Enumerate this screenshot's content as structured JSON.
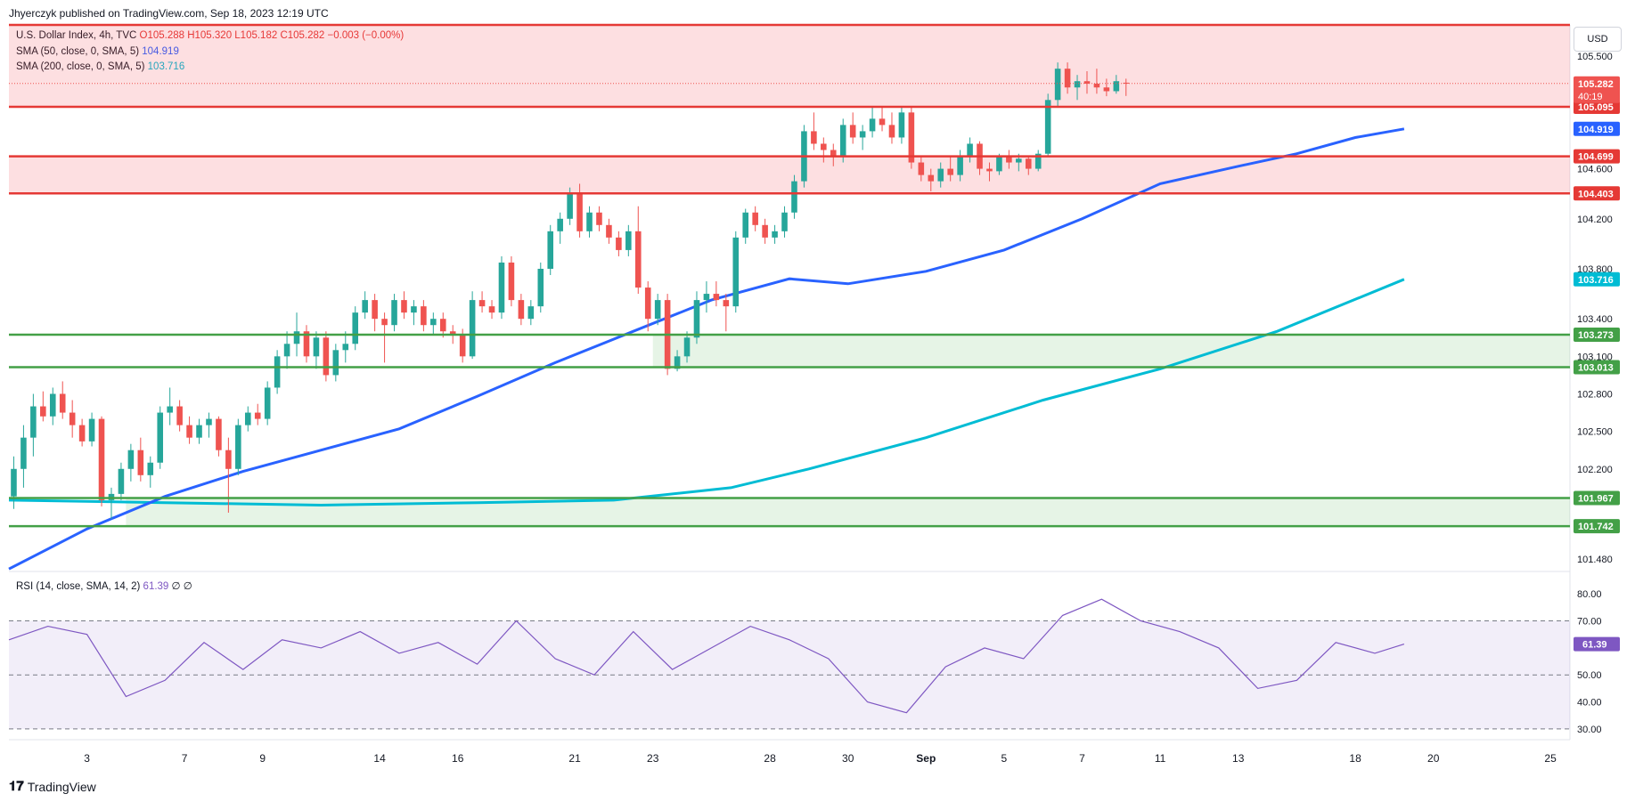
{
  "header": {
    "publisher": "Jhyerczyk published on TradingView.com, Sep 18, 2023 12:19 UTC"
  },
  "legend": {
    "symbol": "U.S. Dollar Index, 4h, TVC",
    "ohlc": "O105.288  H105.320  L105.182  C105.282  −0.003 (−0.00%)",
    "sma50_label": "SMA (50, close, 0, SMA, 5)",
    "sma50_value": "104.919",
    "sma200_label": "SMA (200, close, 0, SMA, 5)",
    "sma200_value": "103.716",
    "rsi_label": "RSI (14, close, SMA, 14, 2)",
    "rsi_value": "61.39",
    "rsi_extra": "∅  ∅"
  },
  "toolbar": {
    "currency": "USD"
  },
  "footer": {
    "brand": "TradingView",
    "brand_icon": "tradingview-logo-icon"
  },
  "colors": {
    "up": "#26a69a",
    "down": "#ef5350",
    "sma50": "#2962ff",
    "sma200": "#00bcd4",
    "resistance": "#e53935",
    "support": "#43a047",
    "rsi": "#7e57c2"
  },
  "chart_data": {
    "type": "candlestick",
    "symbol": "U.S. Dollar Index",
    "timeframe": "4h",
    "y_axis_ticks": [
      "105.500",
      "104.600",
      "104.200",
      "103.800",
      "103.400",
      "103.100",
      "102.800",
      "102.500",
      "102.200",
      "101.480"
    ],
    "y_axis_tick_values": [
      105.5,
      104.6,
      104.2,
      103.8,
      103.4,
      103.1,
      102.8,
      102.5,
      102.2,
      101.48
    ],
    "ylim": [
      101.38,
      105.75
    ],
    "x_axis_ticks": [
      "3",
      "7",
      "9",
      "14",
      "16",
      "21",
      "23",
      "28",
      "30",
      "Sep",
      "5",
      "7",
      "11",
      "13",
      "18",
      "20",
      "25"
    ],
    "x_axis_tick_index": [
      8,
      18,
      26,
      38,
      46,
      58,
      66,
      78,
      86,
      94,
      102,
      110,
      118,
      126,
      138,
      146,
      158
    ],
    "x_index_range": [
      0,
      160
    ],
    "candles_approx": [
      [
        101.98,
        102.3,
        101.88,
        102.2
      ],
      [
        102.2,
        102.55,
        102.05,
        102.45
      ],
      [
        102.45,
        102.8,
        102.3,
        102.7
      ],
      [
        102.7,
        102.82,
        102.58,
        102.62
      ],
      [
        102.62,
        102.85,
        102.55,
        102.8
      ],
      [
        102.8,
        102.9,
        102.6,
        102.65
      ],
      [
        102.65,
        102.75,
        102.45,
        102.55
      ],
      [
        102.55,
        102.6,
        102.38,
        102.42
      ],
      [
        102.42,
        102.65,
        102.38,
        102.6
      ],
      [
        102.6,
        102.62,
        101.9,
        101.95
      ],
      [
        101.95,
        102.05,
        101.8,
        102.0
      ],
      [
        102.0,
        102.25,
        101.95,
        102.2
      ],
      [
        102.2,
        102.4,
        102.1,
        102.35
      ],
      [
        102.35,
        102.45,
        102.1,
        102.15
      ],
      [
        102.15,
        102.3,
        102.05,
        102.25
      ],
      [
        102.25,
        102.7,
        102.2,
        102.65
      ],
      [
        102.65,
        102.85,
        102.55,
        102.7
      ],
      [
        102.7,
        102.75,
        102.5,
        102.55
      ],
      [
        102.55,
        102.62,
        102.4,
        102.45
      ],
      [
        102.45,
        102.6,
        102.4,
        102.55
      ],
      [
        102.55,
        102.65,
        102.45,
        102.6
      ],
      [
        102.6,
        102.62,
        102.3,
        102.35
      ],
      [
        102.35,
        102.45,
        101.85,
        102.2
      ],
      [
        102.2,
        102.6,
        102.15,
        102.55
      ],
      [
        102.55,
        102.7,
        102.5,
        102.65
      ],
      [
        102.65,
        102.72,
        102.55,
        102.6
      ],
      [
        102.6,
        102.9,
        102.55,
        102.85
      ],
      [
        102.85,
        103.15,
        102.8,
        103.1
      ],
      [
        103.1,
        103.3,
        103.0,
        103.2
      ],
      [
        103.2,
        103.45,
        103.1,
        103.3
      ],
      [
        103.3,
        103.35,
        103.05,
        103.1
      ],
      [
        103.1,
        103.3,
        103.0,
        103.25
      ],
      [
        103.25,
        103.3,
        102.9,
        102.95
      ],
      [
        102.95,
        103.2,
        102.9,
        103.15
      ],
      [
        103.15,
        103.3,
        103.05,
        103.2
      ],
      [
        103.2,
        103.5,
        103.15,
        103.45
      ],
      [
        103.45,
        103.62,
        103.4,
        103.55
      ],
      [
        103.55,
        103.6,
        103.3,
        103.4
      ],
      [
        103.4,
        103.45,
        103.05,
        103.35
      ],
      [
        103.35,
        103.6,
        103.3,
        103.55
      ],
      [
        103.55,
        103.62,
        103.4,
        103.45
      ],
      [
        103.45,
        103.55,
        103.35,
        103.5
      ],
      [
        103.5,
        103.55,
        103.3,
        103.35
      ],
      [
        103.35,
        103.45,
        103.28,
        103.4
      ],
      [
        103.4,
        103.45,
        103.25,
        103.3
      ],
      [
        103.3,
        103.35,
        103.2,
        103.28
      ],
      [
        103.28,
        103.32,
        103.05,
        103.1
      ],
      [
        103.1,
        103.62,
        103.08,
        103.55
      ],
      [
        103.55,
        103.62,
        103.45,
        103.5
      ],
      [
        103.5,
        103.55,
        103.4,
        103.45
      ],
      [
        103.45,
        103.9,
        103.4,
        103.85
      ],
      [
        103.85,
        103.9,
        103.5,
        103.55
      ],
      [
        103.55,
        103.6,
        103.35,
        103.4
      ],
      [
        103.4,
        103.55,
        103.35,
        103.5
      ],
      [
        103.5,
        103.85,
        103.45,
        103.8
      ],
      [
        103.8,
        104.15,
        103.75,
        104.1
      ],
      [
        104.1,
        104.25,
        104.0,
        104.2
      ],
      [
        104.2,
        104.45,
        104.15,
        104.4
      ],
      [
        104.4,
        104.48,
        104.05,
        104.1
      ],
      [
        104.1,
        104.3,
        104.05,
        104.25
      ],
      [
        104.25,
        104.3,
        104.1,
        104.15
      ],
      [
        104.15,
        104.2,
        104.0,
        104.05
      ],
      [
        104.05,
        104.1,
        103.9,
        103.95
      ],
      [
        103.95,
        104.15,
        103.9,
        104.1
      ],
      [
        104.1,
        104.3,
        103.6,
        103.65
      ],
      [
        103.65,
        103.7,
        103.3,
        103.4
      ],
      [
        103.4,
        103.6,
        103.35,
        103.55
      ],
      [
        103.55,
        103.6,
        102.95,
        103.0
      ],
      [
        103.0,
        103.15,
        102.98,
        103.1
      ],
      [
        103.1,
        103.3,
        103.05,
        103.25
      ],
      [
        103.25,
        103.62,
        103.2,
        103.55
      ],
      [
        103.55,
        103.7,
        103.45,
        103.6
      ],
      [
        103.6,
        103.7,
        103.5,
        103.55
      ],
      [
        103.55,
        103.6,
        103.3,
        103.5
      ],
      [
        103.5,
        104.1,
        103.45,
        104.05
      ],
      [
        104.05,
        104.28,
        104.0,
        104.25
      ],
      [
        104.25,
        104.3,
        104.1,
        104.15
      ],
      [
        104.15,
        104.2,
        104.0,
        104.05
      ],
      [
        104.05,
        104.15,
        104.0,
        104.1
      ],
      [
        104.1,
        104.3,
        104.05,
        104.25
      ],
      [
        104.25,
        104.55,
        104.2,
        104.5
      ],
      [
        104.5,
        104.95,
        104.45,
        104.9
      ],
      [
        104.9,
        105.05,
        104.75,
        104.8
      ],
      [
        104.8,
        104.85,
        104.65,
        104.75
      ],
      [
        104.75,
        104.8,
        104.62,
        104.7
      ],
      [
        104.7,
        105.0,
        104.65,
        104.95
      ],
      [
        104.95,
        105.05,
        104.8,
        104.85
      ],
      [
        104.85,
        104.95,
        104.75,
        104.9
      ],
      [
        104.9,
        105.1,
        104.85,
        105.0
      ],
      [
        105.0,
        105.1,
        104.9,
        104.95
      ],
      [
        104.95,
        105.05,
        104.8,
        104.85
      ],
      [
        104.85,
        105.1,
        104.8,
        105.05
      ],
      [
        105.05,
        105.1,
        104.6,
        104.65
      ],
      [
        104.65,
        104.7,
        104.5,
        104.55
      ],
      [
        104.55,
        104.6,
        104.42,
        104.5
      ],
      [
        104.5,
        104.65,
        104.45,
        104.6
      ],
      [
        104.6,
        104.7,
        104.5,
        104.55
      ],
      [
        104.55,
        104.75,
        104.5,
        104.7
      ],
      [
        104.7,
        104.85,
        104.65,
        104.8
      ],
      [
        104.8,
        104.82,
        104.55,
        104.6
      ],
      [
        104.6,
        104.65,
        104.5,
        104.58
      ],
      [
        104.58,
        104.72,
        104.55,
        104.7
      ],
      [
        104.7,
        104.75,
        104.6,
        104.65
      ],
      [
        104.65,
        104.72,
        104.58,
        104.68
      ],
      [
        104.68,
        104.7,
        104.55,
        104.6
      ],
      [
        104.6,
        104.75,
        104.58,
        104.72
      ],
      [
        104.72,
        105.2,
        104.7,
        105.15
      ],
      [
        105.15,
        105.45,
        105.1,
        105.4
      ],
      [
        105.4,
        105.45,
        105.2,
        105.25
      ],
      [
        105.25,
        105.35,
        105.15,
        105.3
      ],
      [
        105.3,
        105.38,
        105.2,
        105.28
      ],
      [
        105.28,
        105.4,
        105.2,
        105.25
      ],
      [
        105.25,
        105.32,
        105.18,
        105.22
      ],
      [
        105.22,
        105.35,
        105.2,
        105.3
      ],
      [
        105.288,
        105.32,
        105.182,
        105.282
      ]
    ],
    "sma50_points": [
      [
        0,
        101.4
      ],
      [
        8,
        101.72
      ],
      [
        16,
        101.98
      ],
      [
        24,
        102.18
      ],
      [
        32,
        102.35
      ],
      [
        40,
        102.52
      ],
      [
        48,
        102.78
      ],
      [
        56,
        103.05
      ],
      [
        64,
        103.3
      ],
      [
        72,
        103.55
      ],
      [
        80,
        103.72
      ],
      [
        86,
        103.68
      ],
      [
        94,
        103.78
      ],
      [
        102,
        103.95
      ],
      [
        110,
        104.2
      ],
      [
        118,
        104.48
      ],
      [
        126,
        104.62
      ],
      [
        132,
        104.72
      ],
      [
        138,
        104.85
      ],
      [
        143,
        104.919
      ]
    ],
    "sma200_points": [
      [
        0,
        101.95
      ],
      [
        16,
        101.93
      ],
      [
        32,
        101.91
      ],
      [
        48,
        101.93
      ],
      [
        62,
        101.95
      ],
      [
        74,
        102.05
      ],
      [
        82,
        102.2
      ],
      [
        94,
        102.45
      ],
      [
        106,
        102.75
      ],
      [
        118,
        103.0
      ],
      [
        130,
        103.3
      ],
      [
        143,
        103.716
      ]
    ],
    "levels": [
      {
        "label": "105.095",
        "value": 105.095,
        "kind": "resistance"
      },
      {
        "label": "104.699",
        "value": 104.699,
        "kind": "resistance"
      },
      {
        "label": "104.403",
        "value": 104.403,
        "kind": "resistance"
      },
      {
        "label": "103.273",
        "value": 103.273,
        "kind": "support"
      },
      {
        "label": "103.013",
        "value": 103.013,
        "kind": "support"
      },
      {
        "label": "101.967",
        "value": 101.967,
        "kind": "support"
      },
      {
        "label": "101.742",
        "value": 101.742,
        "kind": "support"
      }
    ],
    "zones": [
      {
        "from": 105.095,
        "to": 105.75,
        "kind": "resistance"
      },
      {
        "from": 104.403,
        "to": 104.699,
        "kind": "resistance"
      },
      {
        "from": 103.013,
        "to": 103.273,
        "kind": "support",
        "x_start": 66
      },
      {
        "from": 101.742,
        "to": 101.967,
        "kind": "support",
        "x_start": 12
      }
    ],
    "price_badges": [
      {
        "label": "105.282",
        "value": 105.282,
        "sub": "40:19",
        "kind": "last"
      },
      {
        "label": "104.919",
        "value": 104.919,
        "kind": "sma50"
      },
      {
        "label": "103.716",
        "value": 103.716,
        "kind": "sma200"
      }
    ],
    "rsi": {
      "ticks": [
        "80.00",
        "70.00",
        "50.00",
        "40.00",
        "30.00"
      ],
      "tick_values": [
        80,
        70,
        50,
        40,
        30
      ],
      "band": [
        30,
        70
      ],
      "ylim": [
        28,
        84
      ],
      "last_label": "61.39",
      "last_value": 61.39,
      "points": [
        [
          0,
          63
        ],
        [
          4,
          68
        ],
        [
          8,
          65
        ],
        [
          12,
          42
        ],
        [
          16,
          48
        ],
        [
          20,
          62
        ],
        [
          24,
          52
        ],
        [
          28,
          63
        ],
        [
          32,
          60
        ],
        [
          36,
          66
        ],
        [
          40,
          58
        ],
        [
          44,
          62
        ],
        [
          48,
          54
        ],
        [
          52,
          70
        ],
        [
          56,
          56
        ],
        [
          60,
          50
        ],
        [
          64,
          66
        ],
        [
          68,
          52
        ],
        [
          72,
          60
        ],
        [
          76,
          68
        ],
        [
          80,
          63
        ],
        [
          84,
          56
        ],
        [
          88,
          40
        ],
        [
          92,
          36
        ],
        [
          96,
          53
        ],
        [
          100,
          60
        ],
        [
          104,
          56
        ],
        [
          108,
          72
        ],
        [
          112,
          78
        ],
        [
          116,
          70
        ],
        [
          120,
          66
        ],
        [
          124,
          60
        ],
        [
          128,
          45
        ],
        [
          132,
          48
        ],
        [
          136,
          62
        ],
        [
          140,
          58
        ],
        [
          143,
          61.39
        ]
      ]
    }
  }
}
